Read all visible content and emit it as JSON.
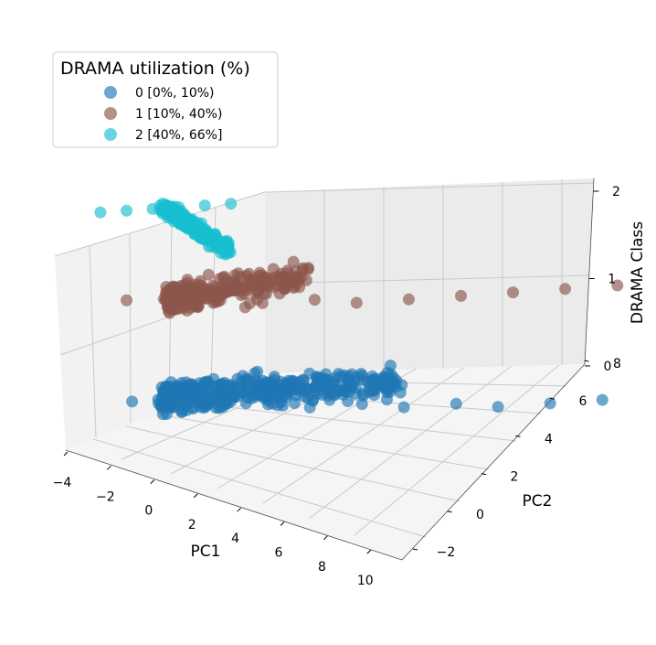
{
  "chart_data": {
    "type": "scatter",
    "projection": "3d",
    "title": "",
    "xlabel": "PC1",
    "ylabel": "PC2",
    "zlabel": "DRAMA Class",
    "xlim": [
      -4,
      10
    ],
    "ylim": [
      -3,
      9
    ],
    "zlim": [
      0,
      2
    ],
    "xticks": [
      -4,
      -2,
      0,
      2,
      4,
      6,
      8,
      10
    ],
    "yticks": [
      -2,
      0,
      2,
      4,
      6,
      8
    ],
    "zticks": [
      0,
      1,
      2
    ],
    "xtick_labels": [
      "−4",
      "−2",
      "0",
      "2",
      "4",
      "6",
      "8",
      "10"
    ],
    "ytick_labels": [
      "−2",
      "0",
      "2",
      "4",
      "6",
      "8"
    ],
    "ztick_labels": [
      "0",
      "1",
      "2"
    ],
    "legend": {
      "title": "DRAMA utilization (%)",
      "placement": "upper-left",
      "entries": [
        "0 [0%, 10%)",
        "1 [10%, 40%)",
        "2 [40%, 66%]"
      ]
    },
    "series": [
      {
        "name": "0 [0%, 10%)",
        "z": 0,
        "color": "#1f77b4",
        "approx_points": [
          {
            "x": -2.0,
            "y": -2.5
          },
          {
            "x": -1.5,
            "y": -2.0
          },
          {
            "x": -1.0,
            "y": -1.0
          },
          {
            "x": 0.0,
            "y": -1.5
          },
          {
            "x": 1.0,
            "y": -0.5
          },
          {
            "x": 2.0,
            "y": 0.0
          },
          {
            "x": 3.0,
            "y": 1.0
          },
          {
            "x": 4.0,
            "y": 1.5
          },
          {
            "x": 5.0,
            "y": 2.5
          },
          {
            "x": 6.0,
            "y": 3.0
          },
          {
            "x": 7.0,
            "y": 4.0
          },
          {
            "x": 8.0,
            "y": 5.0
          },
          {
            "x": 9.0,
            "y": 6.5
          },
          {
            "x": 9.5,
            "y": 7.5
          }
        ]
      },
      {
        "name": "1 [10%, 40%)",
        "z": 1,
        "color": "#8c564b",
        "approx_points": [
          {
            "x": -2.5,
            "y": -2.0
          },
          {
            "x": -1.5,
            "y": -1.5
          },
          {
            "x": -0.5,
            "y": -0.5
          },
          {
            "x": 0.5,
            "y": 0.0
          },
          {
            "x": 1.5,
            "y": 1.0
          },
          {
            "x": 2.5,
            "y": 1.5
          },
          {
            "x": 3.5,
            "y": 2.5
          },
          {
            "x": 4.5,
            "y": 3.5
          },
          {
            "x": 5.5,
            "y": 4.5
          },
          {
            "x": 6.5,
            "y": 5.5
          },
          {
            "x": 7.5,
            "y": 6.5
          },
          {
            "x": 9.0,
            "y": 8.5
          }
        ]
      },
      {
        "name": "2 [40%, 66%]",
        "z": 2,
        "color": "#17becf",
        "approx_points": [
          {
            "x": -3.0,
            "y": -2.5
          },
          {
            "x": -2.5,
            "y": -2.0
          },
          {
            "x": -2.0,
            "y": -1.5
          },
          {
            "x": -1.5,
            "y": -1.0
          },
          {
            "x": -1.0,
            "y": -0.5
          },
          {
            "x": -0.5,
            "y": 0.0
          }
        ]
      }
    ]
  }
}
